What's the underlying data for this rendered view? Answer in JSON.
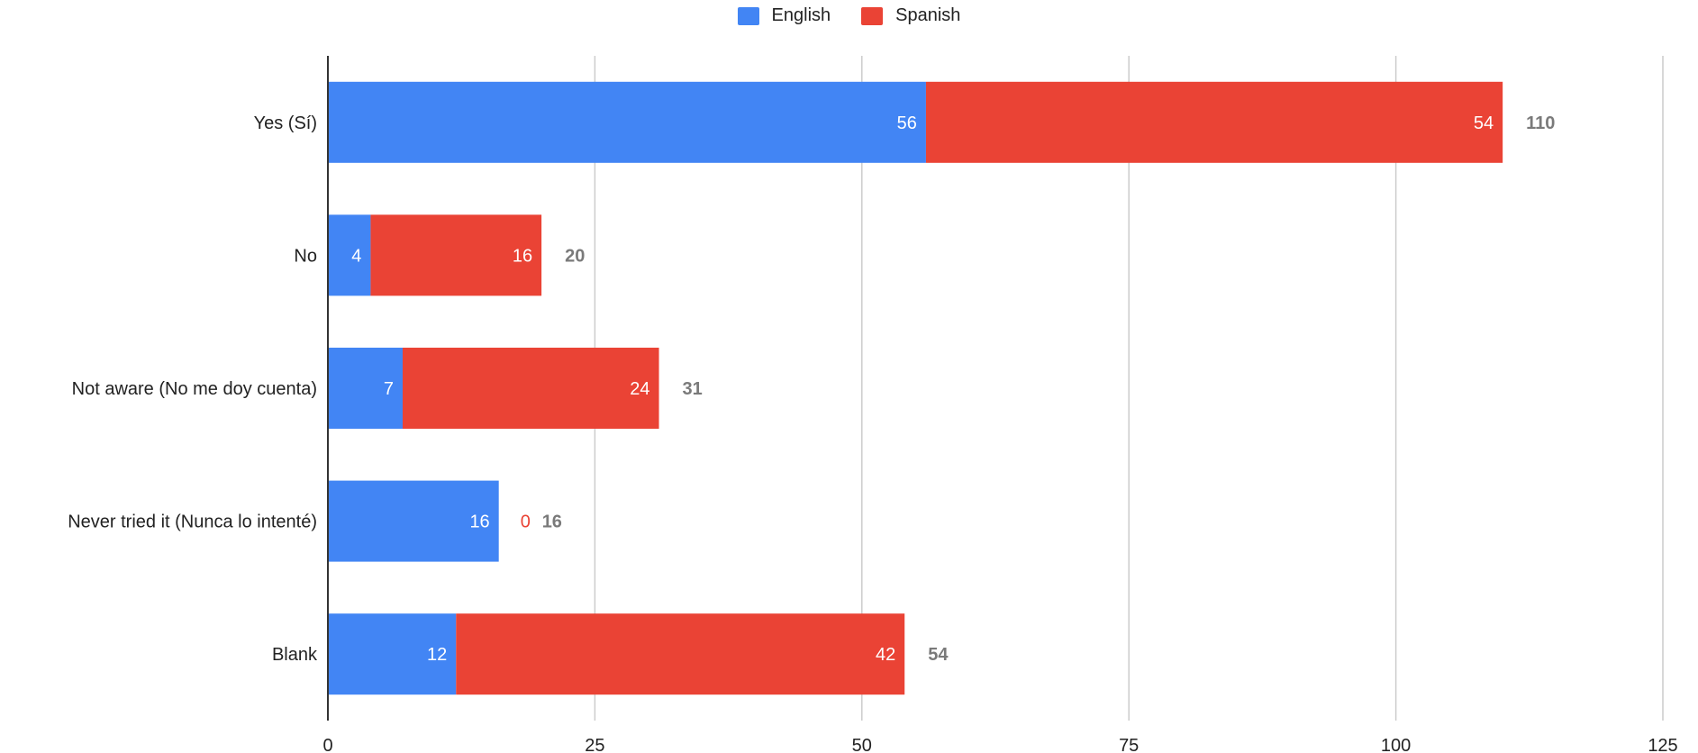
{
  "chart_data": {
    "type": "bar",
    "orientation": "horizontal",
    "stacked": true,
    "categories": [
      "Yes (Sí)",
      "No",
      "Not aware (No me doy cuenta)",
      "Never tried it (Nunca lo intenté)",
      "Blank"
    ],
    "series": [
      {
        "name": "English",
        "color": "#4285F4",
        "values": [
          56,
          4,
          7,
          16,
          12
        ]
      },
      {
        "name": "Spanish",
        "color": "#EA4335",
        "values": [
          54,
          16,
          24,
          0,
          42
        ]
      }
    ],
    "totals": [
      110,
      20,
      31,
      16,
      54
    ],
    "xlim": [
      0,
      125
    ],
    "xticks": [
      0,
      25,
      50,
      75,
      100,
      125
    ],
    "legend_position": "top-center",
    "grid": true,
    "title": "",
    "xlabel": "",
    "ylabel": ""
  }
}
